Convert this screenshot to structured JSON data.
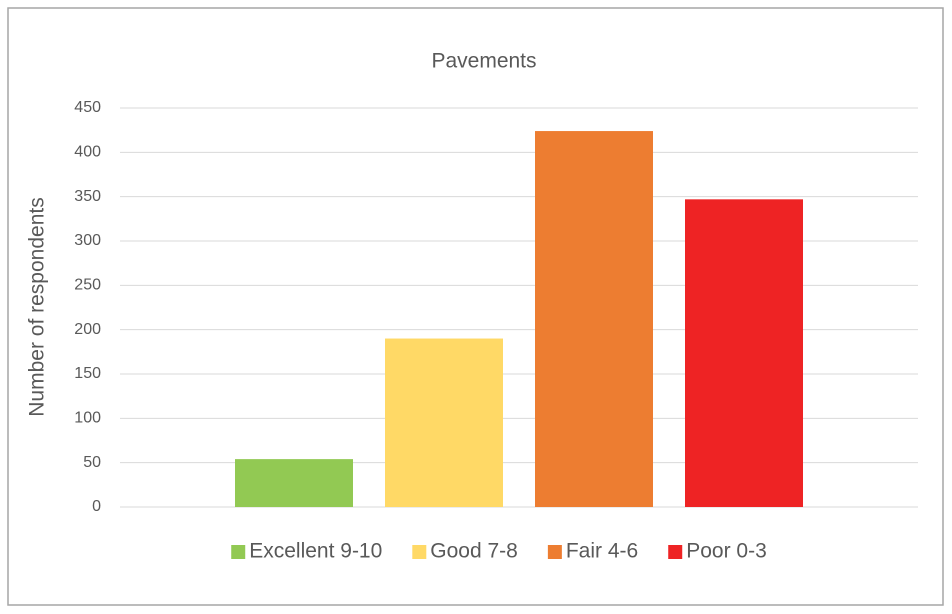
{
  "chart_data": {
    "type": "bar",
    "title": "Pavements",
    "y_label": "Number of respondents",
    "categories": [
      null
    ],
    "series": [
      {
        "name": "Excellent 9-10",
        "color": "#92c953",
        "values": [
          54
        ]
      },
      {
        "name": "Good 7-8",
        "color": "#ffd966",
        "values": [
          190
        ]
      },
      {
        "name": "Fair 4-6",
        "color": "#ed7d31",
        "values": [
          424
        ]
      },
      {
        "name": "Poor 0-3",
        "color": "#ee2324",
        "values": [
          347
        ]
      }
    ],
    "ylim": [
      0,
      450
    ],
    "yticks": [
      0,
      50,
      100,
      150,
      200,
      250,
      300,
      350,
      400,
      450
    ],
    "grid": true,
    "legend": "bottom"
  }
}
